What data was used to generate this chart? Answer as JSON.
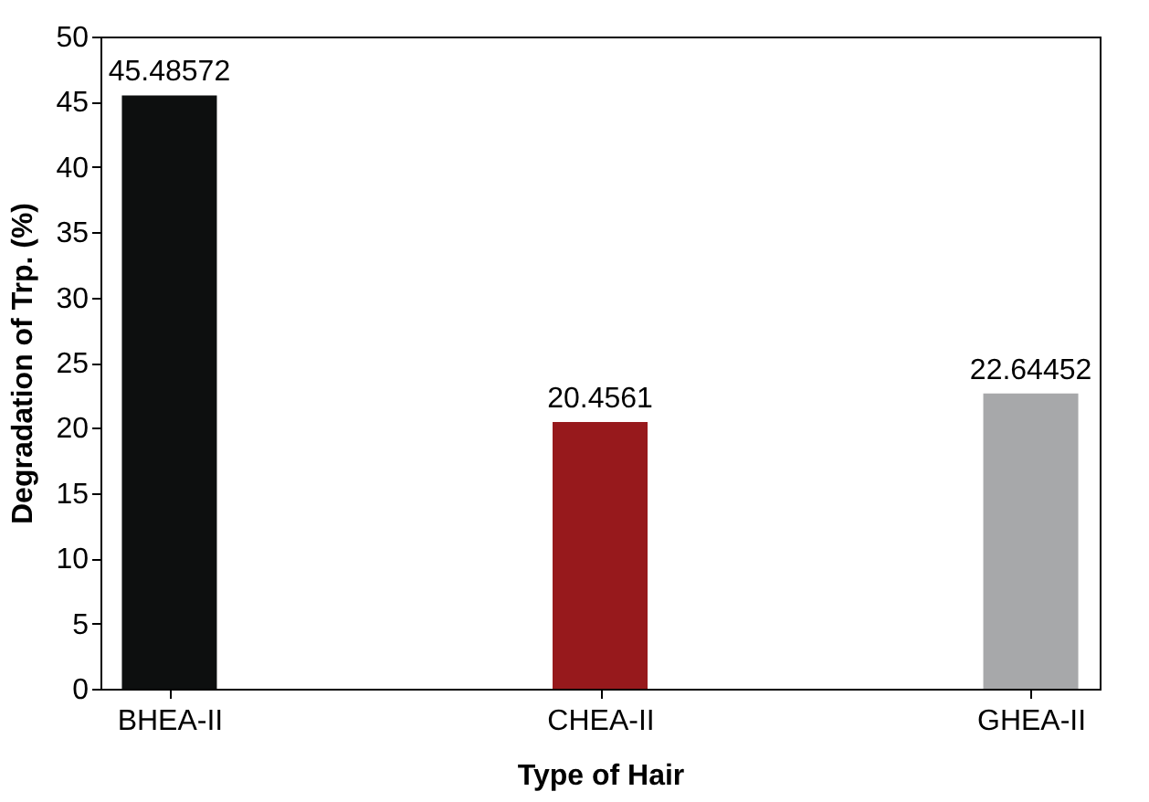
{
  "chart_data": {
    "type": "bar",
    "xlabel": "Type of Hair",
    "ylabel": "Degradation of Trp. (%)",
    "categories": [
      "BHEA-II",
      "CHEA-II",
      "GHEA-II"
    ],
    "values": [
      45.48572,
      20.4561,
      22.64452
    ],
    "colors": [
      "#0d0f0f",
      "#97191c",
      "#a7a8aa"
    ],
    "ylim": [
      0,
      50
    ],
    "yticks": [
      0,
      5,
      10,
      15,
      20,
      25,
      30,
      35,
      40,
      45,
      50
    ],
    "grid": false,
    "data_labels": true
  }
}
